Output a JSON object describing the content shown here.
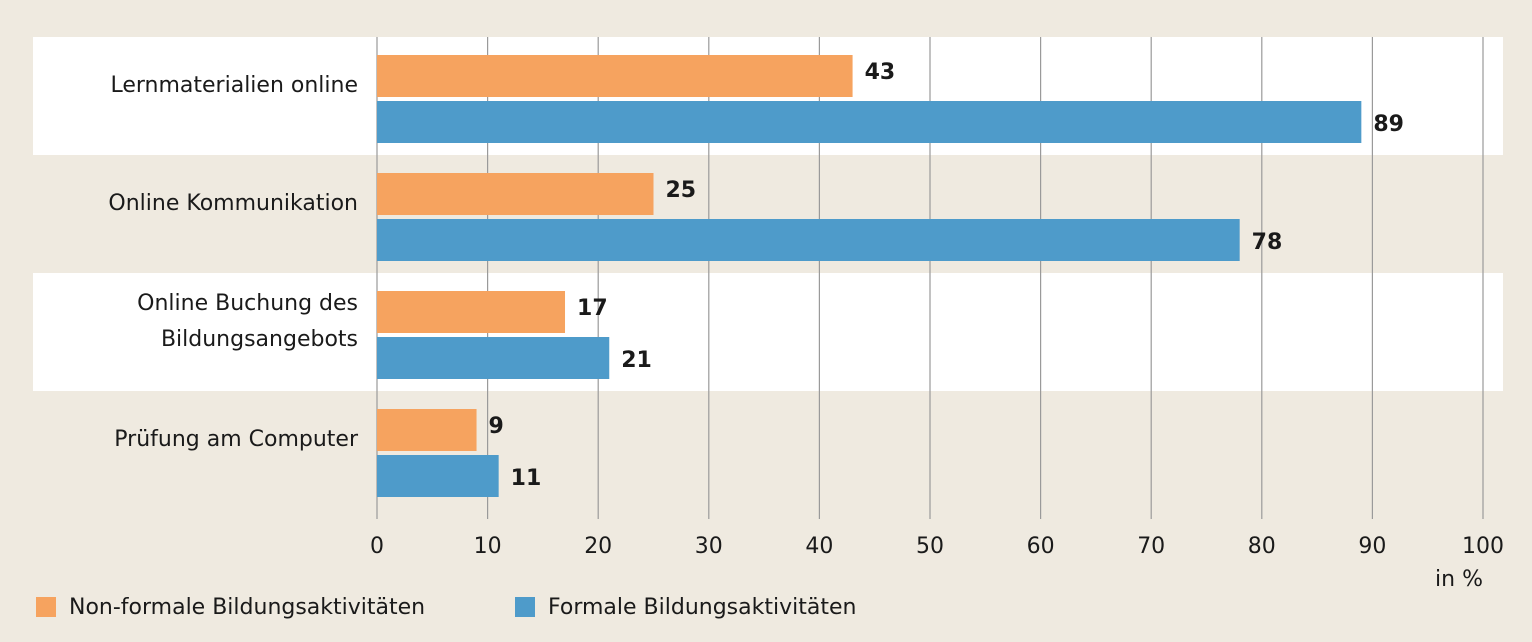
{
  "chart_data": {
    "type": "bar",
    "orientation": "horizontal",
    "categories": [
      "Lernmaterialien online",
      "Online Kommunikation",
      "Online Buchung des\nBildungsangebots",
      "Prüfung am Computer"
    ],
    "series": [
      {
        "name": "Non-formale Bildungsaktivitäten",
        "color": "#f6a35f",
        "values": [
          43,
          25,
          17,
          9
        ]
      },
      {
        "name": "Formale Bildungsaktivitäten",
        "color": "#4e9bca",
        "values": [
          89,
          78,
          21,
          11
        ]
      }
    ],
    "xlim": [
      0,
      100
    ],
    "xticks": [
      0,
      10,
      20,
      30,
      40,
      50,
      60,
      70,
      80,
      90,
      100
    ],
    "xlabel": "in %",
    "grid": true,
    "legend": "bottom-left"
  }
}
